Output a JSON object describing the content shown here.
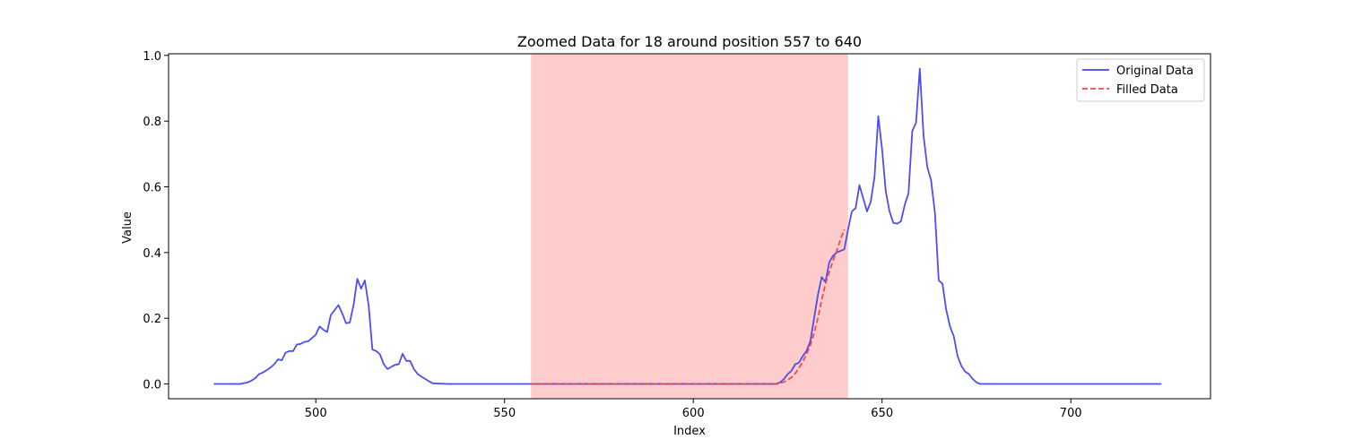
{
  "chart_data": {
    "type": "line",
    "title": "Zoomed Data for 18 around position 557 to 640",
    "xlabel": "Index",
    "ylabel": "Value",
    "xlim": [
      461,
      737
    ],
    "ylim": [
      -0.045,
      1.005
    ],
    "xticks": [
      500,
      550,
      600,
      650,
      700
    ],
    "yticks": [
      0.0,
      0.2,
      0.4,
      0.6,
      0.8,
      1.0
    ],
    "ytick_labels": [
      "0.0",
      "0.2",
      "0.4",
      "0.6",
      "0.8",
      "1.0"
    ],
    "grid": false,
    "legend_position": "top-right",
    "highlight_span": {
      "x0": 557,
      "x1": 641,
      "color": "#ff9999"
    },
    "series": [
      {
        "name": "Original Data",
        "color": "#4444ee",
        "style": "solid",
        "x": [
          473,
          475,
          477,
          479,
          480,
          482,
          483,
          484,
          485,
          486,
          487,
          488,
          489,
          490,
          491,
          492,
          493,
          494,
          495,
          496,
          497,
          498,
          499,
          500,
          501,
          502,
          503,
          504,
          505,
          506,
          507,
          508,
          509,
          510,
          511,
          512,
          513,
          514,
          515,
          516,
          517,
          518,
          519,
          520,
          521,
          522,
          523,
          524,
          525,
          526,
          527,
          528,
          529,
          530,
          531,
          535,
          545,
          556,
          560,
          570,
          580,
          590,
          600,
          610,
          620,
          622,
          623,
          624,
          625,
          626,
          627,
          628,
          629,
          630,
          631,
          632,
          633,
          634,
          635,
          636,
          637,
          638,
          639,
          640,
          641,
          642,
          643,
          644,
          645,
          646,
          647,
          648,
          649,
          650,
          651,
          652,
          653,
          654,
          655,
          656,
          657,
          658,
          659,
          660,
          661,
          662,
          663,
          664,
          665,
          666,
          667,
          668,
          669,
          670,
          671,
          672,
          673,
          674,
          675,
          676,
          680,
          690,
          700,
          710,
          724
        ],
        "y": [
          0,
          0,
          0,
          0,
          0,
          0.005,
          0.01,
          0.018,
          0.03,
          0.035,
          0.042,
          0.05,
          0.06,
          0.075,
          0.072,
          0.095,
          0.1,
          0.1,
          0.12,
          0.122,
          0.128,
          0.13,
          0.14,
          0.15,
          0.175,
          0.165,
          0.158,
          0.21,
          0.225,
          0.24,
          0.215,
          0.185,
          0.187,
          0.24,
          0.32,
          0.29,
          0.315,
          0.24,
          0.105,
          0.1,
          0.09,
          0.06,
          0.045,
          0.052,
          0.058,
          0.06,
          0.092,
          0.07,
          0.07,
          0.045,
          0.03,
          0.022,
          0.015,
          0.008,
          0.002,
          0,
          0,
          0,
          0,
          0,
          0,
          0,
          0,
          0,
          0,
          0,
          0.005,
          0.015,
          0.03,
          0.04,
          0.06,
          0.065,
          0.085,
          0.1,
          0.13,
          0.2,
          0.27,
          0.325,
          0.31,
          0.37,
          0.39,
          0.4,
          0.405,
          0.41,
          0.47,
          0.525,
          0.535,
          0.605,
          0.565,
          0.525,
          0.555,
          0.63,
          0.815,
          0.715,
          0.585,
          0.525,
          0.49,
          0.488,
          0.495,
          0.545,
          0.58,
          0.77,
          0.795,
          0.96,
          0.755,
          0.66,
          0.62,
          0.52,
          0.315,
          0.305,
          0.225,
          0.175,
          0.145,
          0.085,
          0.055,
          0.038,
          0.03,
          0.015,
          0.005,
          0,
          0,
          0,
          0,
          0,
          0
        ]
      },
      {
        "name": "Filled Data",
        "color": "#ee4444",
        "style": "dashed",
        "x": [
          557,
          570,
          580,
          590,
          600,
          610,
          620,
          622,
          623,
          624,
          625,
          626,
          627,
          628,
          629,
          630,
          631,
          632,
          633,
          634,
          635,
          636,
          637,
          638,
          639,
          640
        ],
        "y": [
          0,
          0,
          0,
          0,
          0,
          0,
          0,
          0,
          0.002,
          0.006,
          0.012,
          0.02,
          0.032,
          0.048,
          0.068,
          0.09,
          0.118,
          0.155,
          0.2,
          0.255,
          0.305,
          0.34,
          0.375,
          0.405,
          0.44,
          0.47
        ]
      }
    ]
  }
}
